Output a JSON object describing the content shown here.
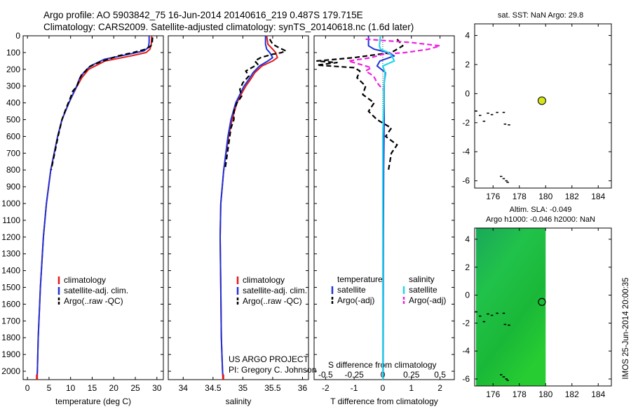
{
  "header": {
    "line1": "Argo profile: AO 5903842_75 16-Jun-2014 20140616_219 0.487S 179.715E",
    "line2": "Climatology: CARS2009. Satellite-adjusted climatology: synTS_20140618.nc (1.6d later)"
  },
  "side_note": "IMOS 25-Jun-2014 20:00:35",
  "project": {
    "line1": "US ARGO PROJECT",
    "line2": "PI: Gregory C. Johnson"
  },
  "colors": {
    "clim": "#e41a1c",
    "sat": "#1f33d6",
    "argo": "#000000",
    "sal_sat": "#22d6e8",
    "sal_argo": "#ee22dd",
    "field": "#1cc83c"
  },
  "chart_data": [
    {
      "id": "temperature",
      "type": "line",
      "xlabel": "temperature (deg C)",
      "ylabel": "",
      "xlim": [
        -1,
        31.5
      ],
      "ylim": [
        2050,
        0
      ],
      "xticks": [
        0,
        5,
        10,
        15,
        20,
        25,
        30
      ],
      "yticks": [
        0,
        100,
        200,
        300,
        400,
        500,
        600,
        700,
        800,
        900,
        1000,
        1100,
        1200,
        1300,
        1400,
        1500,
        1600,
        1700,
        1800,
        1900,
        2000
      ],
      "legend": [
        "climatology",
        "satellite-adj. clim.",
        "Argo(..raw -QC)"
      ],
      "series": [
        {
          "name": "climatology",
          "y": [
            0,
            50,
            80,
            100,
            120,
            150,
            200,
            250,
            300,
            400,
            500,
            600,
            800,
            1000,
            1200,
            1500,
            1800,
            2000,
            2050
          ],
          "x": [
            28.8,
            28.7,
            28.4,
            27.5,
            24,
            18,
            14.2,
            12.6,
            11.5,
            9.6,
            8.0,
            7.0,
            5.4,
            4.4,
            3.7,
            3.0,
            2.5,
            2.3,
            2.2
          ]
        },
        {
          "name": "satellite-adj. clim.",
          "y": [
            0,
            40,
            70,
            90,
            110,
            140,
            180,
            220,
            260,
            300,
            400,
            500,
            600,
            800,
            1000,
            1200,
            1500,
            1800,
            2000,
            2050
          ],
          "x": [
            28.2,
            28.2,
            28.0,
            27.0,
            23.5,
            17.8,
            14.6,
            13.0,
            12.0,
            11.4,
            9.6,
            8.0,
            7.0,
            5.4,
            4.4,
            3.7,
            3.0,
            2.5,
            2.3,
            2.2
          ]
        },
        {
          "name": "Argo(..raw -QC)",
          "y": [
            10,
            40,
            60,
            80,
            100,
            120,
            150,
            170,
            190,
            210,
            230,
            260,
            300,
            330,
            380,
            430,
            500,
            600,
            700,
            800
          ],
          "x": [
            29.0,
            28.9,
            28.6,
            27.4,
            24.5,
            21.0,
            17.5,
            15.5,
            14.0,
            13.5,
            12.6,
            12.0,
            11.5,
            10.5,
            9.8,
            9.0,
            8.0,
            7.1,
            6.3,
            5.5
          ]
        }
      ]
    },
    {
      "id": "salinity",
      "type": "line",
      "xlabel": "salinity",
      "ylabel": "",
      "xlim": [
        33.75,
        36.1
      ],
      "ylim": [
        2050,
        0
      ],
      "xticks": [
        34,
        34.5,
        35,
        35.5,
        36
      ],
      "legend": [
        "climatology",
        "satellite-adj. clim.",
        "Argo(..raw -QC)"
      ],
      "series": [
        {
          "name": "climatology",
          "y": [
            0,
            50,
            80,
            100,
            130,
            150,
            180,
            220,
            260,
            300,
            350,
            400,
            500,
            600,
            800,
            1000,
            1200,
            1500,
            1800,
            2000,
            2050
          ],
          "x": [
            35.4,
            35.42,
            35.5,
            35.55,
            35.58,
            35.5,
            35.32,
            35.2,
            35.13,
            35.05,
            34.97,
            34.9,
            34.82,
            34.76,
            34.68,
            34.63,
            34.62,
            34.63,
            34.64,
            34.66,
            34.67
          ]
        },
        {
          "name": "satellite-adj. clim.",
          "y": [
            0,
            50,
            80,
            100,
            130,
            150,
            180,
            220,
            260,
            300,
            350,
            400,
            500,
            600,
            800,
            1000,
            1200,
            1500,
            1800,
            2000,
            2050
          ],
          "x": [
            35.38,
            35.38,
            35.4,
            35.45,
            35.5,
            35.42,
            35.28,
            35.17,
            35.1,
            35.02,
            34.95,
            34.88,
            34.8,
            34.75,
            34.68,
            34.63,
            34.62,
            34.63,
            34.64,
            34.66,
            34.67
          ]
        },
        {
          "name": "Argo(..raw -QC)",
          "y": [
            20,
            50,
            70,
            90,
            100,
            110,
            130,
            150,
            170,
            190,
            210,
            240,
            280,
            320,
            360,
            400,
            450,
            500,
            550,
            600,
            700,
            800
          ],
          "x": [
            35.45,
            35.5,
            35.6,
            35.72,
            35.65,
            35.5,
            35.3,
            35.2,
            35.25,
            35.15,
            35.05,
            35.1,
            35.0,
            34.95,
            34.98,
            34.9,
            34.85,
            34.85,
            34.8,
            34.78,
            34.74,
            34.7
          ]
        }
      ]
    },
    {
      "id": "differences",
      "type": "line",
      "xlabel": "T difference from climatology",
      "xlabel_top": "S difference from climatology",
      "xlim": [
        -2.4,
        2.5
      ],
      "ylim": [
        2050,
        0
      ],
      "xticks": [
        -2,
        -1,
        0,
        1,
        2
      ],
      "xticks_top": [
        -0.5,
        -0.25,
        0,
        0.25,
        0.5
      ],
      "xticks_top_labels": [
        "-0.5",
        "-0.25",
        "0",
        "0.25",
        "0.5"
      ],
      "legend_headers": [
        "temperature",
        "salinity"
      ],
      "legend": [
        "satellite",
        "Argo(-adj)",
        "satellite",
        "Argo(-adj)"
      ],
      "series": [
        {
          "name": "temperature satellite",
          "y": [
            0,
            60,
            80,
            100,
            120,
            150,
            180,
            220,
            280,
            350,
            500,
            800,
            1200,
            2000,
            2050
          ],
          "x": [
            -0.5,
            -0.5,
            -0.3,
            0.2,
            0.4,
            -0.1,
            -0.2,
            0.1,
            0.05,
            0.05,
            0.05,
            0.03,
            0.02,
            0.01,
            0.01
          ]
        },
        {
          "name": "temperature Argo(-adj)",
          "y": [
            20,
            60,
            100,
            130,
            150,
            160,
            175,
            190,
            210,
            250,
            300,
            350,
            400,
            450,
            500,
            550,
            600,
            650,
            700,
            800
          ],
          "x": [
            0.5,
            0.7,
            0.3,
            -1.0,
            -2.3,
            -1.6,
            -2.3,
            -1.0,
            -0.8,
            -0.9,
            -0.6,
            -0.7,
            -0.3,
            -0.5,
            -0.2,
            0.3,
            0.1,
            0.5,
            0.3,
            0.2
          ]
        },
        {
          "name": "salinity satellite",
          "y": [
            0,
            60,
            80,
            100,
            120,
            150,
            180,
            220,
            300,
            400,
            600,
            1000,
            2000,
            2050
          ],
          "x": [
            -0.02,
            -0.03,
            -0.02,
            0.05,
            0.08,
            0.1,
            0.0,
            0.02,
            0.01,
            0.01,
            0.0,
            0.0,
            0.0,
            0.0
          ]
        },
        {
          "name": "salinity Argo(-adj)",
          "y": [
            20,
            40,
            60,
            80,
            90,
            100,
            110,
            130,
            150,
            170,
            190,
            210,
            240,
            280,
            320
          ],
          "x": [
            -0.15,
            0.25,
            0.5,
            0.4,
            0.3,
            0.2,
            0.0,
            -0.1,
            -0.3,
            -0.2,
            -0.1,
            -0.15,
            -0.08,
            -0.05,
            0.0
          ]
        }
      ]
    },
    {
      "id": "sst_map",
      "type": "scatter",
      "title": "sat. SST: NaN Argo: 29.8",
      "xlim": [
        174.6,
        185
      ],
      "ylim": [
        -6.5,
        4.8
      ],
      "xticks": [
        176,
        178,
        180,
        182,
        184
      ],
      "yticks": [
        -6,
        -4,
        -2,
        0,
        2,
        4
      ],
      "argo_position": [
        179.715,
        -0.487
      ],
      "coast_points": [
        [
          174.7,
          -1.2
        ],
        [
          175.0,
          -1.5
        ],
        [
          175.3,
          -1.9
        ],
        [
          175.6,
          -1.35
        ],
        [
          175.9,
          -1.45
        ],
        [
          176.3,
          -1.3
        ],
        [
          176.8,
          -1.3
        ],
        [
          176.9,
          -2.1
        ],
        [
          177.2,
          -2.15
        ],
        [
          176.6,
          -5.7
        ],
        [
          176.8,
          -5.85
        ],
        [
          177.0,
          -6.0
        ],
        [
          177.1,
          -6.1
        ]
      ]
    },
    {
      "id": "sla_map",
      "type": "heatmap",
      "title_line1": "Altim. SLA: -0.049",
      "title_line2": "Argo h1000: -0.046 h2000: NaN",
      "xlim": [
        174.6,
        185
      ],
      "ylim": [
        -6.5,
        4.8
      ],
      "xticks": [
        176,
        178,
        180,
        182,
        184
      ],
      "yticks": [
        -6,
        -4,
        -2,
        0,
        2,
        4
      ],
      "field_xlim": [
        174.7,
        180.0
      ],
      "argo_position": [
        179.715,
        -0.487
      ],
      "coast_points": [
        [
          174.7,
          -1.2
        ],
        [
          175.0,
          -1.5
        ],
        [
          175.3,
          -1.9
        ],
        [
          175.6,
          -1.35
        ],
        [
          175.9,
          -1.45
        ],
        [
          176.3,
          -1.3
        ],
        [
          176.8,
          -1.3
        ],
        [
          176.9,
          -2.1
        ],
        [
          177.2,
          -2.15
        ],
        [
          176.6,
          -5.7
        ],
        [
          176.8,
          -5.85
        ],
        [
          177.0,
          -6.0
        ],
        [
          177.1,
          -6.1
        ]
      ]
    }
  ]
}
